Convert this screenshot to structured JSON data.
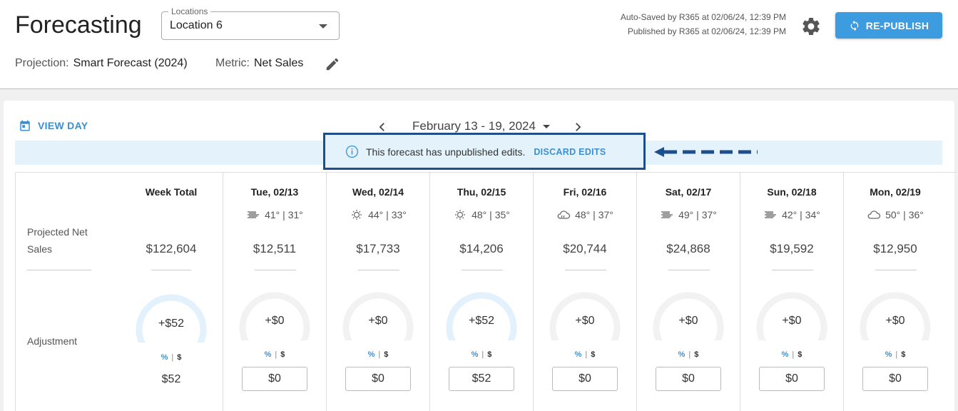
{
  "header": {
    "title": "Forecasting",
    "location_label": "Locations",
    "location_value": "Location 6",
    "projection_label": "Projection:",
    "projection_value": "Smart Forecast (2024)",
    "metric_label": "Metric:",
    "metric_value": "Net Sales",
    "auto_saved": "Auto-Saved by R365 at 02/06/24, 12:39 PM",
    "published": "Published by R365 at 02/06/24, 12:39 PM",
    "republish_label": "RE-PUBLISH"
  },
  "toolbar": {
    "view_day_label": "VIEW DAY",
    "date_range": "February 13 - 19, 2024"
  },
  "banner": {
    "message": "This forecast has unpublished edits.",
    "discard_label": "DISCARD EDITS"
  },
  "rows": {
    "projected_label": "Projected Net Sales",
    "adjustment_label": "Adjustment"
  },
  "week_total": {
    "label": "Week Total",
    "amount": "$122,604",
    "adjustment": "+$52",
    "adjustment_value": "$52",
    "gauge_fill": 0.5
  },
  "toggle": {
    "pct": "%",
    "sep": "|",
    "dollar": "$"
  },
  "days": [
    {
      "label": "Tue, 02/13",
      "weather_icon": "wind-icon",
      "temps": "41° | 31°",
      "amount": "$12,511",
      "adjustment": "+$0",
      "input": "$0",
      "gauge_fill": 0
    },
    {
      "label": "Wed, 02/14",
      "weather_icon": "sun-icon",
      "temps": "44° | 33°",
      "amount": "$17,733",
      "adjustment": "+$0",
      "input": "$0",
      "gauge_fill": 0
    },
    {
      "label": "Thu, 02/15",
      "weather_icon": "sun-icon",
      "temps": "48° | 35°",
      "amount": "$14,206",
      "adjustment": "+$52",
      "input": "$52",
      "gauge_fill": 0.5
    },
    {
      "label": "Fri, 02/16",
      "weather_icon": "cloud-rain-icon",
      "temps": "48° | 37°",
      "amount": "$20,744",
      "adjustment": "+$0",
      "input": "$0",
      "gauge_fill": 0
    },
    {
      "label": "Sat, 02/17",
      "weather_icon": "wind-icon",
      "temps": "49° | 37°",
      "amount": "$24,868",
      "adjustment": "+$0",
      "input": "$0",
      "gauge_fill": 0
    },
    {
      "label": "Sun, 02/18",
      "weather_icon": "wind-icon",
      "temps": "42° | 34°",
      "amount": "$19,592",
      "adjustment": "+$0",
      "input": "$0",
      "gauge_fill": 0
    },
    {
      "label": "Mon, 02/19",
      "weather_icon": "cloud-icon",
      "temps": "50° | 36°",
      "amount": "$12,950",
      "adjustment": "+$0",
      "input": "$0",
      "gauge_fill": 0
    }
  ],
  "colors": {
    "accent": "#3d9be0",
    "gauge_track": "#f2f2f2",
    "gauge_active": "#e2f1fb",
    "gauge_dot": "#2e8fd8",
    "annotation": "#1f4e8c"
  }
}
